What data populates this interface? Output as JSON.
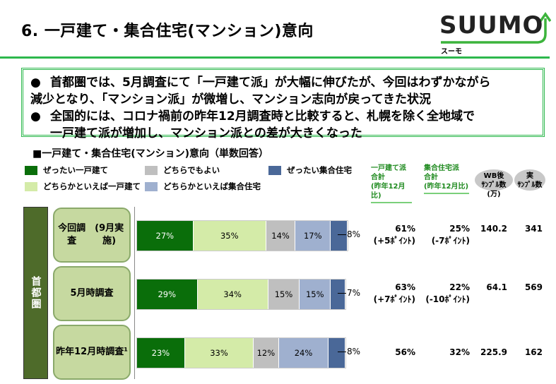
{
  "title": "6. 一戸建て・集合住宅(マンション)意向",
  "logo": {
    "text": "SUUMO",
    "sub": "スーモ"
  },
  "summary": [
    {
      "bullet": "●",
      "lines": [
        "首都圏では、5月調査にて「一戸建て派」が大幅に伸びたが、今回はわずかながら",
        "減少となり、「マンション派」が微増し、マンション志向が戻ってきた状況"
      ]
    },
    {
      "bullet": "●",
      "lines": [
        "全国的には、コロナ禍前の昨年12月調査時と比較すると、札幌を除く全地域で",
        "一戸建て派が増加し、マンション派との差が大きくなった"
      ]
    }
  ],
  "chart_data": {
    "type": "bar",
    "title": "■一戸建て・集合住宅(マンション)意向（単数回答）",
    "orientation": "horizontal-stacked-100",
    "region": "首都圏",
    "categories": [
      "今回調査(9月実施)",
      "5月時調査",
      "昨年12月時調査1"
    ],
    "category_lines": [
      [
        "今回調査",
        "(9月実施)"
      ],
      [
        "5月時調査"
      ],
      [
        "昨年",
        "12月時調査¹"
      ]
    ],
    "series": [
      {
        "name": "ぜったい一戸建て",
        "color": "#0a6e0a",
        "values": [
          27,
          29,
          23
        ]
      },
      {
        "name": "どちらかといえば一戸建て",
        "color": "#d4eba8",
        "values": [
          35,
          34,
          33
        ]
      },
      {
        "name": "どちらでもよい",
        "color": "#bfbfbf",
        "values": [
          14,
          15,
          12
        ]
      },
      {
        "name": "どちらかといえば集合住宅",
        "color": "#9fb0cf",
        "values": [
          17,
          15,
          24
        ]
      },
      {
        "name": "ぜったい集合住宅",
        "color": "#4a6898",
        "values": [
          8,
          7,
          8
        ]
      }
    ],
    "legend_order": [
      0,
      2,
      4,
      1,
      3
    ]
  },
  "columns": {
    "house": {
      "h": [
        "一戸建て派",
        "合計"
      ],
      "sub": "(昨年12月比)"
    },
    "condo": {
      "h": [
        "集合住宅派",
        "合計"
      ],
      "sub": "(昨年12月比)"
    },
    "wb": [
      "WB後",
      "ｻﾝﾌﾟﾙ数(万)"
    ],
    "real": [
      "実",
      "ｻﾝﾌﾟﾙ数"
    ]
  },
  "rows": [
    {
      "house": "61%",
      "house_diff": "(+5ﾎﾟｲﾝﾄ)",
      "condo": "25%",
      "condo_diff": "(-7ﾎﾟｲﾝﾄ)",
      "wb": "140.2",
      "real": "341"
    },
    {
      "house": "63%",
      "house_diff": "(+7ﾎﾟｲﾝﾄ)",
      "condo": "22%",
      "condo_diff": "(-10ﾎﾟｲﾝﾄ)",
      "wb": "64.1",
      "real": "569"
    },
    {
      "house": "56%",
      "house_diff": "",
      "condo": "32%",
      "condo_diff": "",
      "wb": "225.9",
      "real": "162"
    }
  ]
}
